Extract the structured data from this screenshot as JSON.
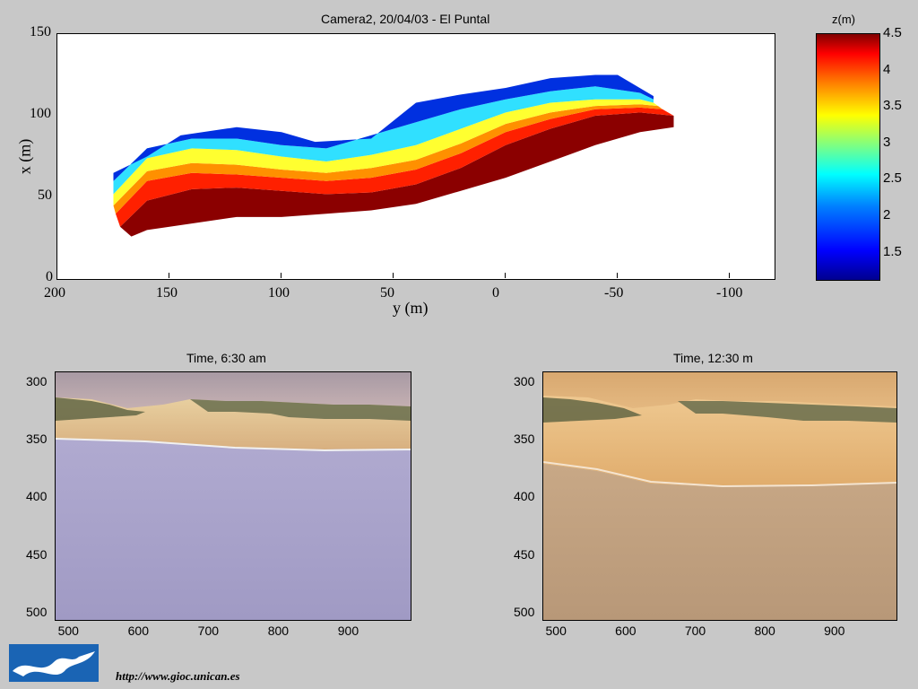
{
  "chart_data": [
    {
      "type": "heatmap",
      "title": "Camera2, 20/04/03 - El Puntal",
      "xlabel": "y (m)",
      "ylabel": "x (m)",
      "xlim": [
        200,
        -120
      ],
      "ylim": [
        0,
        150
      ],
      "x_ticks": [
        "200",
        "150",
        "100",
        "50",
        "0",
        "-50",
        "-100"
      ],
      "y_ticks": [
        "0",
        "50",
        "100",
        "150"
      ],
      "colorbar": {
        "label": "z(m)",
        "range": [
          1.1,
          4.5
        ],
        "ticks": [
          "4.5",
          "4",
          "3.5",
          "3",
          "2.5",
          "2",
          "1.5"
        ]
      },
      "bands": [
        {
          "z": 4.5,
          "color": "#8b0000",
          "lower": [
            [
              167,
              26
            ],
            [
              160,
              30
            ],
            [
              140,
              34
            ],
            [
              120,
              38
            ],
            [
              100,
              38
            ],
            [
              80,
              40
            ],
            [
              60,
              42
            ],
            [
              40,
              46
            ],
            [
              20,
              54
            ],
            [
              0,
              62
            ],
            [
              -20,
              72
            ],
            [
              -40,
              82
            ],
            [
              -60,
              90
            ],
            [
              -75,
              93
            ]
          ],
          "upper": [
            [
              172,
              32
            ],
            [
              160,
              48
            ],
            [
              140,
              55
            ],
            [
              120,
              56
            ],
            [
              100,
              54
            ],
            [
              80,
              52
            ],
            [
              60,
              53
            ],
            [
              40,
              58
            ],
            [
              20,
              68
            ],
            [
              0,
              82
            ],
            [
              -20,
              92
            ],
            [
              -40,
              100
            ],
            [
              -60,
              102
            ],
            [
              -75,
              100
            ]
          ]
        },
        {
          "z": 4.0,
          "color": "#ff2000",
          "lower": [
            [
              172,
              32
            ],
            [
              160,
              48
            ],
            [
              140,
              55
            ],
            [
              120,
              56
            ],
            [
              100,
              54
            ],
            [
              80,
              52
            ],
            [
              60,
              53
            ],
            [
              40,
              58
            ],
            [
              20,
              68
            ],
            [
              0,
              82
            ],
            [
              -20,
              92
            ],
            [
              -40,
              100
            ],
            [
              -60,
              102
            ],
            [
              -75,
              100
            ]
          ],
          "upper": [
            [
              174,
              40
            ],
            [
              160,
              60
            ],
            [
              140,
              65
            ],
            [
              120,
              64
            ],
            [
              100,
              62
            ],
            [
              80,
              60
            ],
            [
              60,
              62
            ],
            [
              40,
              67
            ],
            [
              20,
              77
            ],
            [
              0,
              90
            ],
            [
              -20,
              98
            ],
            [
              -40,
              104
            ],
            [
              -60,
              105
            ],
            [
              -70,
              104
            ]
          ]
        },
        {
          "z": 3.5,
          "color": "#ff9000",
          "lower": [
            [
              174,
              40
            ],
            [
              160,
              60
            ],
            [
              140,
              65
            ],
            [
              120,
              64
            ],
            [
              100,
              62
            ],
            [
              80,
              60
            ],
            [
              60,
              62
            ],
            [
              40,
              67
            ],
            [
              20,
              77
            ],
            [
              0,
              90
            ],
            [
              -20,
              98
            ],
            [
              -40,
              104
            ],
            [
              -60,
              105
            ],
            [
              -70,
              104
            ]
          ],
          "upper": [
            [
              175,
              45
            ],
            [
              160,
              66
            ],
            [
              140,
              71
            ],
            [
              120,
              70
            ],
            [
              100,
              67
            ],
            [
              80,
              65
            ],
            [
              60,
              68
            ],
            [
              40,
              73
            ],
            [
              20,
              83
            ],
            [
              0,
              95
            ],
            [
              -20,
              102
            ],
            [
              -40,
              106
            ],
            [
              -60,
              107
            ],
            [
              -68,
              106
            ]
          ]
        },
        {
          "z": 3.0,
          "color": "#ffff30",
          "lower": [
            [
              175,
              45
            ],
            [
              160,
              66
            ],
            [
              140,
              71
            ],
            [
              120,
              70
            ],
            [
              100,
              67
            ],
            [
              80,
              65
            ],
            [
              60,
              68
            ],
            [
              40,
              73
            ],
            [
              20,
              83
            ],
            [
              0,
              95
            ],
            [
              -20,
              102
            ],
            [
              -40,
              106
            ],
            [
              -60,
              107
            ],
            [
              -68,
              106
            ]
          ],
          "upper": [
            [
              175,
              52
            ],
            [
              160,
              74
            ],
            [
              140,
              80
            ],
            [
              120,
              79
            ],
            [
              100,
              75
            ],
            [
              80,
              72
            ],
            [
              60,
              76
            ],
            [
              40,
              82
            ],
            [
              20,
              92
            ],
            [
              0,
              102
            ],
            [
              -20,
              108
            ],
            [
              -40,
              110
            ],
            [
              -60,
              110
            ],
            [
              -66,
              108
            ]
          ]
        },
        {
          "z": 2.5,
          "color": "#30e0ff",
          "lower": [
            [
              175,
              52
            ],
            [
              160,
              74
            ],
            [
              140,
              80
            ],
            [
              120,
              79
            ],
            [
              100,
              75
            ],
            [
              80,
              72
            ],
            [
              60,
              76
            ],
            [
              40,
              82
            ],
            [
              20,
              92
            ],
            [
              0,
              102
            ],
            [
              -20,
              108
            ],
            [
              -40,
              110
            ],
            [
              -60,
              110
            ],
            [
              -66,
              108
            ]
          ],
          "upper": [
            [
              175,
              60
            ],
            [
              160,
              80
            ],
            [
              140,
              86
            ],
            [
              120,
              86
            ],
            [
              100,
              82
            ],
            [
              80,
              80
            ],
            [
              60,
              88
            ],
            [
              40,
              96
            ],
            [
              20,
              104
            ],
            [
              0,
              110
            ],
            [
              -20,
              115
            ],
            [
              -40,
              118
            ],
            [
              -60,
              114
            ],
            [
              -66,
              110
            ]
          ]
        },
        {
          "z": 1.5,
          "color": "#0030e0",
          "lower": [
            [
              175,
              60
            ],
            [
              160,
              80
            ],
            [
              140,
              86
            ],
            [
              120,
              86
            ],
            [
              100,
              82
            ],
            [
              80,
              80
            ],
            [
              60,
              88
            ],
            [
              40,
              96
            ],
            [
              20,
              104
            ],
            [
              0,
              110
            ],
            [
              -20,
              115
            ],
            [
              -40,
              118
            ],
            [
              -60,
              114
            ],
            [
              -66,
              110
            ]
          ],
          "upper": [
            [
              175,
              65
            ],
            [
              160,
              75
            ],
            [
              145,
              88
            ],
            [
              120,
              93
            ],
            [
              100,
              90
            ],
            [
              85,
              84
            ],
            [
              60,
              86
            ],
            [
              50,
              97
            ],
            [
              40,
              108
            ],
            [
              20,
              113
            ],
            [
              0,
              117
            ],
            [
              -20,
              123
            ],
            [
              -40,
              125
            ],
            [
              -50,
              125
            ],
            [
              -66,
              112
            ]
          ]
        }
      ]
    },
    {
      "type": "image",
      "title": "Time, 6:30 am",
      "x_ticks": [
        "500",
        "600",
        "700",
        "800",
        "900"
      ],
      "y_ticks": [
        "300",
        "350",
        "400",
        "450",
        "500"
      ],
      "xlim": [
        480,
        990
      ],
      "ylim": [
        507,
        291
      ]
    },
    {
      "type": "image",
      "title": "Time, 12:30 m",
      "x_ticks": [
        "500",
        "600",
        "700",
        "800",
        "900"
      ],
      "y_ticks": [
        "300",
        "350",
        "400",
        "450",
        "500"
      ],
      "xlim": [
        480,
        990
      ],
      "ylim": [
        507,
        291
      ]
    }
  ],
  "footer": {
    "url": "http://www.gioc.unican.es",
    "logo": "gioc-waves-logo"
  }
}
